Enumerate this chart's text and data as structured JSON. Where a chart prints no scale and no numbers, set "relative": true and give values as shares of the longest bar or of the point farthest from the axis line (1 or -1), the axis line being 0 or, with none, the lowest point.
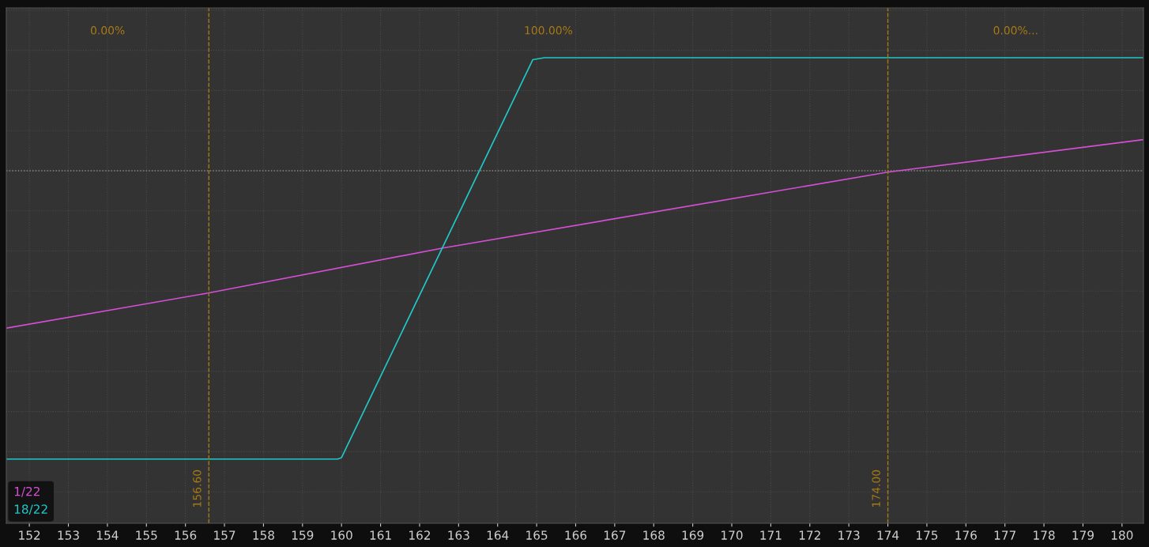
{
  "chart_data": {
    "type": "line",
    "relative": true,
    "xlim": [
      151.41,
      180.55
    ],
    "xticks": [
      152,
      153,
      154,
      155,
      156,
      157,
      158,
      159,
      160,
      161,
      162,
      163,
      164,
      165,
      166,
      167,
      168,
      169,
      170,
      171,
      172,
      173,
      174,
      175,
      176,
      177,
      178,
      179,
      180
    ],
    "series": [
      {
        "name": "1/22",
        "color": "#d44fd4",
        "x": [
          151.41,
          156.55,
          162.6,
          174.0,
          180.55
        ],
        "values": [
          -0.546,
          -0.425,
          -0.268,
          -0.005,
          0.108
        ]
      },
      {
        "name": "18/22",
        "color": "#20c8c8",
        "x": [
          151.41,
          159.9,
          160.0,
          164.9,
          165.2,
          180.55
        ],
        "values": [
          -1,
          -1,
          -0.995,
          0.385,
          0.392,
          0.392
        ]
      }
    ],
    "ref_lines": [
      {
        "axis": "y",
        "value": 0,
        "color": "#8a8a8a",
        "line_style": "dotted"
      },
      {
        "axis": "x",
        "value": 156.6,
        "label": "156.60",
        "color": "#a87a14",
        "line_style": "dashed"
      },
      {
        "axis": "x",
        "value": 174.0,
        "label": "174.00",
        "color": "#a87a14",
        "line_style": "dashed"
      }
    ],
    "annotations": [
      "0.00%",
      "100.00%",
      "0.00%..."
    ],
    "grid": true,
    "legend": "bottom left",
    "line_style": "solid"
  }
}
